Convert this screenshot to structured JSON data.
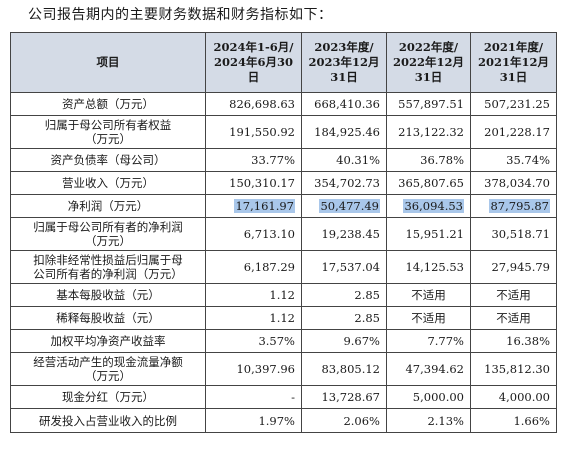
{
  "intro": "公司报告期内的主要财务数据和财务指标如下：",
  "table": {
    "headers": [
      "项目",
      "2024年1-6月/2024年6月30日",
      "2023年度/2023年12月31日",
      "2022年度/2022年12月31日",
      "2021年度/2021年12月31日"
    ],
    "header_lines": [
      [
        "项目"
      ],
      [
        "2024年1-6月/",
        "2024年6月30日"
      ],
      [
        "2023年度/",
        "2023年12月",
        "31日"
      ],
      [
        "2022年度/",
        "2022年12月",
        "31日"
      ],
      [
        "2021年度/",
        "2021年12月",
        "31日"
      ]
    ],
    "rows": [
      {
        "label": [
          "资产总额（万元）"
        ],
        "values": [
          "826,698.63",
          "668,410.36",
          "557,897.51",
          "507,231.25"
        ]
      },
      {
        "label": [
          "归属于母公司所有者权益",
          "（万元）"
        ],
        "values": [
          "191,550.92",
          "184,925.46",
          "213,122.32",
          "201,228.17"
        ]
      },
      {
        "label": [
          "资产负债率（母公司）"
        ],
        "values": [
          "33.77%",
          "40.31%",
          "36.78%",
          "35.74%"
        ]
      },
      {
        "label": [
          "营业收入（万元）"
        ],
        "values": [
          "150,310.17",
          "354,702.73",
          "365,807.65",
          "378,034.70"
        ]
      },
      {
        "label": [
          "净利润（万元）"
        ],
        "values": [
          "17,161.97",
          "50,477.49",
          "36,094.53",
          "87,795.87"
        ],
        "highlighted": true
      },
      {
        "label": [
          "归属于母公司所有者的净利润",
          "（万元）"
        ],
        "values": [
          "6,713.10",
          "19,238.45",
          "15,951.21",
          "30,518.71"
        ]
      },
      {
        "label": [
          "扣除非经常性损益后归属于母",
          "公司所有者的净利润（万元）"
        ],
        "values": [
          "6,187.29",
          "17,537.04",
          "14,125.53",
          "27,945.79"
        ]
      },
      {
        "label": [
          "基本每股收益（元）"
        ],
        "values": [
          "1.12",
          "2.85",
          "不适用",
          "不适用"
        ]
      },
      {
        "label": [
          "稀释每股收益（元）"
        ],
        "values": [
          "1.12",
          "2.85",
          "不适用",
          "不适用"
        ]
      },
      {
        "label": [
          "加权平均净资产收益率"
        ],
        "values": [
          "3.57%",
          "9.67%",
          "7.77%",
          "16.38%"
        ]
      },
      {
        "label": [
          "经营活动产生的现金流量净额",
          "（万元）"
        ],
        "values": [
          "10,397.96",
          "83,805.12",
          "47,394.62",
          "135,812.30"
        ]
      },
      {
        "label": [
          "现金分红（万元）"
        ],
        "values": [
          "-",
          "13,728.67",
          "5,000.00",
          "4,000.00"
        ]
      },
      {
        "label": [
          "研发投入占营业收入的比例"
        ],
        "values": [
          "1.97%",
          "2.06%",
          "2.13%",
          "1.66%"
        ]
      }
    ]
  },
  "colors": {
    "header_bg": "#d4dbe6",
    "highlight": "#a9c7ea",
    "border": "#444444"
  }
}
